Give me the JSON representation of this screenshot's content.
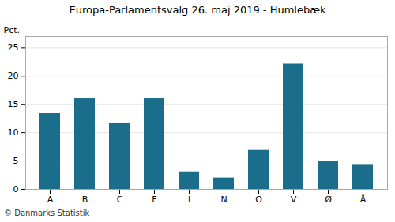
{
  "chart_data": {
    "type": "bar",
    "title": "Europa-Parlamentsvalg 26. maj 2019 - Humlebæk",
    "categories": [
      "A",
      "B",
      "C",
      "F",
      "I",
      "N",
      "O",
      "V",
      "Ø",
      "Å"
    ],
    "values": [
      13.5,
      16.0,
      11.7,
      16.0,
      3.1,
      2.0,
      7.0,
      22.2,
      5.0,
      4.4
    ],
    "color": "#1a6e8c",
    "ylabel": "Pct.",
    "ylim": [
      0,
      27
    ],
    "yticks": [
      0,
      5,
      10,
      15,
      20,
      25
    ],
    "grid": true,
    "footer": "© Danmarks Statistik"
  }
}
